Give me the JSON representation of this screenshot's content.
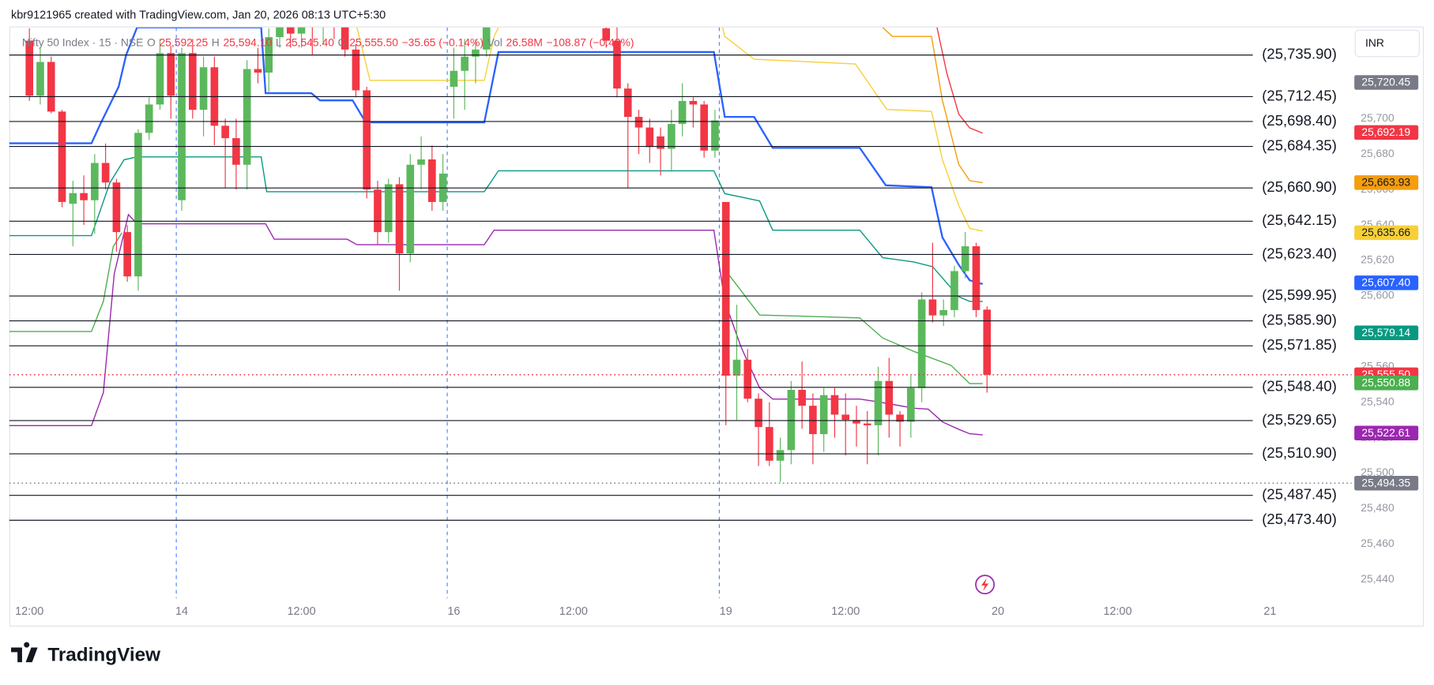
{
  "chart_data": {
    "type": "candlestick",
    "attribution": "kbr9121965 created with TradingView.com, Jan 20, 2026 08:13 UTC+5:30",
    "symbol": "Nifty 50 Index · 15 · NSE",
    "ohlc": [
      {
        "key": "O",
        "value": "25,592.25"
      },
      {
        "key": "H",
        "value": "25,594.10"
      },
      {
        "key": "L",
        "value": "25,545.40"
      },
      {
        "key": "C",
        "value": "25,555.50"
      }
    ],
    "change": "−35.65 (−0.14%)",
    "volume": {
      "key": "Vol",
      "value": "26.58M",
      "change": "−108.87 (−0.42%)"
    },
    "currency": "INR",
    "brand": "TradingView",
    "up_color": "#5cb85c",
    "down_color": "#f23645",
    "x": [
      1,
      2,
      3,
      4,
      5,
      6,
      7,
      8,
      9,
      10,
      11,
      12,
      13,
      14,
      15,
      16,
      17,
      18,
      19,
      20,
      21,
      22,
      23,
      24,
      25,
      26,
      27,
      28,
      29,
      30,
      31,
      32,
      33,
      34,
      35,
      36,
      37,
      38,
      39,
      40,
      41,
      42,
      43,
      54,
      55,
      56,
      57,
      58,
      59,
      60,
      61,
      62,
      63,
      64,
      65,
      66,
      67,
      68,
      69,
      70,
      71,
      72,
      73,
      74,
      75,
      76,
      77,
      78,
      79,
      80,
      81,
      82,
      83,
      84,
      85,
      86,
      87,
      88,
      89
    ],
    "open": [
      25744,
      25713,
      25732,
      25704,
      25652,
      25658,
      25654,
      25675,
      25664,
      25636,
      25611,
      25692,
      25708,
      25737,
      25654,
      25737,
      25705,
      25729,
      25696,
      25689,
      25674,
      25728,
      25726,
      25746,
      25760,
      25748,
      25758,
      25752,
      25760,
      25755,
      25739,
      25716,
      25660,
      25636,
      25663,
      25624,
      25674,
      25677,
      25653,
      25718,
      25727,
      25735,
      25739,
      25751,
      25744,
      25717,
      25701,
      25695,
      25690,
      25683,
      25697,
      25710,
      25708,
      25682,
      25653,
      25555,
      25564,
      25542,
      25526,
      25507,
      25513,
      25547,
      25538,
      25522,
      25544,
      25533,
      25530,
      25528,
      25527,
      25552,
      25533,
      25529,
      25548,
      25598,
      25589,
      25592,
      25614,
      25628,
      25592.25
    ],
    "high": [
      25751,
      25740,
      25735,
      25705,
      25665,
      25668,
      25680,
      25686,
      25666,
      25640,
      25694,
      25712,
      25745,
      25741,
      25740,
      25745,
      25735,
      25735,
      25700,
      25700,
      25733,
      25740,
      25751,
      25768,
      25765,
      25765,
      25762,
      25768,
      25765,
      25760,
      25742,
      25718,
      25665,
      25666,
      25667,
      25680,
      25690,
      25685,
      25680,
      25740,
      25745,
      25745,
      25765,
      25755,
      25752,
      25720,
      25705,
      25700,
      25695,
      25705,
      25720,
      25712,
      25710,
      25705,
      25653,
      25595,
      25570,
      25545,
      25540,
      25520,
      25552,
      25563,
      25545,
      25548,
      25548,
      25545,
      25538,
      25535,
      25560,
      25565,
      25535,
      25555,
      25602,
      25630,
      25598,
      25617,
      25636,
      25630,
      25594.1
    ],
    "low": [
      25710,
      25708,
      25703,
      25650,
      25628,
      25640,
      25635,
      25660,
      25625,
      25608,
      25603,
      25688,
      25705,
      25700,
      25648,
      25700,
      25690,
      25685,
      25661,
      25660,
      25660,
      25720,
      25715,
      25740,
      25740,
      25740,
      25736,
      25742,
      25745,
      25735,
      25712,
      25655,
      25629,
      25630,
      25603,
      25619,
      25660,
      25648,
      25648,
      25700,
      25705,
      25720,
      25735,
      25740,
      25712,
      25661,
      25680,
      25675,
      25668,
      25670,
      25690,
      25695,
      25678,
      25678,
      25527,
      25530,
      25540,
      25504,
      25504,
      25495,
      25505,
      25525,
      25505,
      25512,
      25520,
      25510,
      25515,
      25505,
      25510,
      25520,
      25515,
      25520,
      25540,
      25585,
      25583,
      25588,
      25610,
      25588,
      25545.4
    ],
    "close": [
      25713,
      25732,
      25704,
      25653,
      25658,
      25654,
      25675,
      25664,
      25636,
      25611,
      25692,
      25708,
      25737,
      25713,
      25737,
      25705,
      25729,
      25696,
      25689,
      25674,
      25728,
      25726,
      25746,
      25760,
      25748,
      25758,
      25752,
      25760,
      25755,
      25739,
      25716,
      25660,
      25636,
      25663,
      25624,
      25674,
      25677,
      25653,
      25669,
      25727,
      25735,
      25739,
      25760,
      25744,
      25717,
      25701,
      25695,
      25684,
      25683,
      25697,
      25710,
      25708,
      25682,
      25699,
      25555,
      25564,
      25542,
      25526,
      25507,
      25513,
      25547,
      25538,
      25522,
      25544,
      25533,
      25530,
      25528,
      25527,
      25552,
      25533,
      25529,
      25548,
      25598,
      25589,
      25592,
      25614,
      25628,
      25592,
      25555.5
    ],
    "xlim": [
      -0.85,
      122.5
    ],
    "xticks": [
      {
        "value": 1,
        "label": "12:00"
      },
      {
        "value": 15,
        "label": "14"
      },
      {
        "value": 26,
        "label": "12:00"
      },
      {
        "value": 40,
        "label": "16"
      },
      {
        "value": 51,
        "label": "12:00"
      },
      {
        "value": 65,
        "label": "19"
      },
      {
        "value": 76,
        "label": "12:00"
      },
      {
        "value": 90,
        "label": "20"
      },
      {
        "value": 101,
        "label": "12:00"
      },
      {
        "value": 115,
        "label": "21"
      }
    ],
    "session_breaks": [
      14.5,
      39.4,
      64.4
    ],
    "ylim": [
      25429.4,
      25751.5
    ],
    "yticks": [
      {
        "value": 25700,
        "label": "25,700"
      },
      {
        "value": 25680,
        "label": "25,680"
      },
      {
        "value": 25660,
        "label": "25,660"
      },
      {
        "value": 25640,
        "label": "25,640"
      },
      {
        "value": 25620,
        "label": "25,620"
      },
      {
        "value": 25600,
        "label": "25,600"
      },
      {
        "value": 25580,
        "label": "25,580"
      },
      {
        "value": 25560,
        "label": "25,560"
      },
      {
        "value": 25540,
        "label": "25,540"
      },
      {
        "value": 25520,
        "label": "25,520"
      },
      {
        "value": 25500,
        "label": "25,500"
      },
      {
        "value": 25480,
        "label": "25,480"
      },
      {
        "value": 25460,
        "label": "25,460"
      },
      {
        "value": 25440,
        "label": "25,440"
      }
    ],
    "overlays": [
      {
        "color": "#2962ff",
        "x": [
          -0.85,
          6.7,
          7.55,
          9.2,
          9.9,
          10.9,
          22.3,
          22.7,
          26.9,
          27.7,
          30.7,
          31.9,
          42.8,
          44.1,
          63.9,
          64.9,
          67.6,
          69.3,
          77.3,
          79.7,
          83.9,
          84.9,
          86.4,
          87.4,
          88.6
        ],
        "y": [
          25686.1,
          25686.1,
          25697.4,
          25718,
          25736.1,
          25751.5,
          25751.5,
          25714.4,
          25714.4,
          25710.3,
          25710.3,
          25697.9,
          25697.9,
          25737.6,
          25737.6,
          25701,
          25701,
          25683.5,
          25683.5,
          25662.4,
          25661.3,
          25633,
          25617.5,
          25608.8,
          25606.7
        ]
      },
      {
        "color": "#9c27b0",
        "x": [
          -0.85,
          6.7,
          7.8,
          8.8,
          10.1,
          10.9,
          22.7,
          23.5,
          30.2,
          31.1,
          42.8,
          43.7,
          63.9,
          64.9,
          66.4,
          68.1,
          69.3,
          77.3,
          79.0,
          82.3,
          83.6,
          84.9,
          86.4,
          87.4,
          88.6
        ],
        "y": [
          25526.8,
          25526.8,
          25545.4,
          25612.4,
          25645.9,
          25640.7,
          25640.7,
          25632,
          25632,
          25628.9,
          25628.9,
          25637.1,
          25637.1,
          25596.9,
          25571.1,
          25548.1,
          25541.8,
          25541.8,
          25540.2,
          25536.6,
          25536.1,
          25528.9,
          25524.7,
          25522.2,
          25521.6
        ]
      },
      {
        "color": "#089981",
        "x": [
          -0.85,
          6.7,
          8.4,
          9.7,
          10.9,
          22.3,
          22.8,
          42.8,
          44.1,
          63.9,
          64.9,
          68.1,
          69.3,
          77.3,
          79.4,
          82.3,
          84.0,
          86.4,
          87.4,
          88.6
        ],
        "y": [
          25634,
          25634,
          25663.9,
          25676.8,
          25678.4,
          25678.4,
          25658.8,
          25658.8,
          25670.6,
          25670.6,
          25657.7,
          25653.6,
          25637.1,
          25637.1,
          25621.6,
          25619.1,
          25616.5,
          25599.5,
          25596.9,
          25596.9
        ]
      },
      {
        "color": "#4caf50",
        "x": [
          -0.85,
          6.7,
          7.8,
          8.7,
          9.5,
          null,
          64.9,
          68.1,
          77.3,
          79.4,
          82.3,
          85.7,
          87.4,
          88.6
        ],
        "y": [
          25579.9,
          25579.9,
          25596.9,
          25627.8,
          25635.6,
          null,
          25615,
          25589.2,
          25587.6,
          25576.3,
          25568.6,
          25560.8,
          25550.5,
          25550.5
        ]
      },
      {
        "color": "#f7d038",
        "x": [
          31.1,
          32.3,
          42.8,
          43.7,
          44.1,
          null,
          64.7,
          64.9,
          67.6,
          76.9,
          79.8,
          83.9,
          84.9,
          86.4,
          87.4,
          88.6
        ],
        "y": [
          25751.5,
          25721.6,
          25721.6,
          25746.4,
          25751.5,
          null,
          25751.5,
          25746.4,
          25733.5,
          25730.9,
          25705.2,
          25704.1,
          25676.8,
          25651,
          25638.1,
          25636.6
        ]
      },
      {
        "color": "#f59d0e",
        "x": [
          79.4,
          80.3,
          83.9,
          84.9,
          86.4,
          87.4,
          88.6
        ],
        "y": [
          25751.5,
          25746.4,
          25746.4,
          25710.3,
          25674.2,
          25665,
          25663.9
        ]
      },
      {
        "color": "#f23645",
        "x": [
          84.4,
          85.3,
          86.4,
          87.4,
          88.6
        ],
        "y": [
          25751.5,
          25725.8,
          25702.6,
          25694.8,
          25691.8
        ]
      }
    ],
    "levels": [
      {
        "value": 25735.9,
        "label": "(25,735.90)"
      },
      {
        "value": 25712.45,
        "label": "(25,712.45)"
      },
      {
        "value": 25698.4,
        "label": "(25,698.40)"
      },
      {
        "value": 25684.35,
        "label": "(25,684.35)"
      },
      {
        "value": 25660.9,
        "label": "(25,660.90)"
      },
      {
        "value": 25642.15,
        "label": "(25,642.15)"
      },
      {
        "value": 25623.4,
        "label": "(25,623.40)"
      },
      {
        "value": 25599.95,
        "label": "(25,599.95)"
      },
      {
        "value": 25585.9,
        "label": "(25,585.90)"
      },
      {
        "value": 25571.85,
        "label": "(25,571.85)"
      },
      {
        "value": 25548.4,
        "label": "(25,548.40)"
      },
      {
        "value": 25529.65,
        "label": "(25,529.65)"
      },
      {
        "value": 25510.9,
        "label": "(25,510.90)"
      },
      {
        "value": 25487.45,
        "label": "(25,487.45)"
      },
      {
        "value": 25473.4,
        "label": "(25,473.40)"
      }
    ],
    "price_badges": [
      {
        "value": 25720.45,
        "label": "25,720.45",
        "color": "#787b86",
        "text_color": "#ffffff"
      },
      {
        "value": 25692.19,
        "label": "25,692.19",
        "color": "#f23645",
        "text_color": "#ffffff"
      },
      {
        "value": 25663.93,
        "label": "25,663.93",
        "color": "#f59d0e",
        "text_color": "#131722"
      },
      {
        "value": 25635.66,
        "label": "25,635.66",
        "color": "#f7d038",
        "text_color": "#131722"
      },
      {
        "value": 25607.4,
        "label": "25,607.40",
        "color": "#2962ff",
        "text_color": "#ffffff"
      },
      {
        "value": 25579.14,
        "label": "25,579.14",
        "color": "#089981",
        "text_color": "#ffffff"
      },
      {
        "value": 25555.5,
        "label": "25,555.50",
        "color": "#f23645",
        "text_color": "#ffffff",
        "dotted": true
      },
      {
        "value": 25550.88,
        "label": "25,550.88",
        "color": "#4caf50",
        "text_color": "#ffffff"
      },
      {
        "value": 25522.61,
        "label": "25,522.61",
        "color": "#9c27b0",
        "text_color": "#ffffff"
      },
      {
        "value": 25494.35,
        "label": "25,494.35",
        "color": "#787b86",
        "text_color": "#ffffff",
        "dotted": true
      }
    ]
  }
}
